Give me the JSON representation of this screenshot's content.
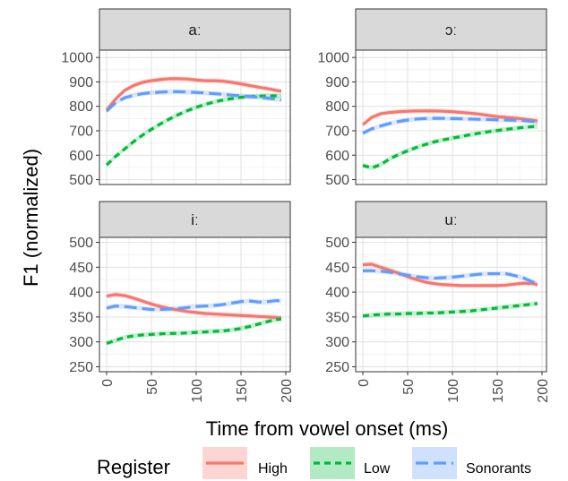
{
  "chart_data": {
    "type": "line",
    "xlabel": "Time from vowel onset (ms)",
    "ylabel": "F1 (normalized)",
    "legend": {
      "title": "Register",
      "position": "bottom",
      "entries": [
        {
          "name": "High",
          "color": "#F8766D",
          "dash": "solid"
        },
        {
          "name": "Low",
          "color": "#00BA38",
          "dash": "dashed"
        },
        {
          "name": "Sonorants",
          "color": "#619CFF",
          "dash": "longdash"
        }
      ]
    },
    "grid": true,
    "x_ticks": [
      0,
      50,
      100,
      150,
      200
    ],
    "xlim": [
      -8,
      205
    ],
    "panels": [
      {
        "title": "aː",
        "ylim": [
          480,
          1030
        ],
        "y_ticks": [
          500,
          600,
          700,
          800,
          900,
          1000
        ],
        "series": [
          {
            "name": "High",
            "x": [
              0,
              10,
              20,
              30,
              40,
              50,
              60,
              70,
              80,
              90,
              100,
              110,
              120,
              130,
              140,
              150,
              160,
              170,
              180,
              190,
              195
            ],
            "y": [
              785,
              830,
              865,
              885,
              898,
              905,
              910,
              913,
              913,
              912,
              908,
              905,
              905,
              903,
              898,
              892,
              885,
              878,
              872,
              865,
              862
            ]
          },
          {
            "name": "Low",
            "x": [
              0,
              10,
              20,
              30,
              40,
              50,
              60,
              70,
              80,
              90,
              100,
              110,
              120,
              130,
              140,
              150,
              160,
              170,
              180,
              190,
              195
            ],
            "y": [
              560,
              595,
              625,
              655,
              682,
              706,
              728,
              748,
              766,
              782,
              796,
              808,
              818,
              826,
              832,
              837,
              840,
              842,
              843,
              843,
              843
            ]
          },
          {
            "name": "Sonorants",
            "x": [
              0,
              10,
              20,
              30,
              40,
              50,
              60,
              70,
              80,
              90,
              100,
              110,
              120,
              130,
              140,
              150,
              160,
              170,
              180,
              190,
              195
            ],
            "y": [
              780,
              815,
              835,
              845,
              852,
              856,
              858,
              860,
              860,
              859,
              857,
              855,
              852,
              849,
              846,
              843,
              840,
              837,
              833,
              829,
              826
            ]
          }
        ]
      },
      {
        "title": "ɔː",
        "ylim": [
          480,
          1030
        ],
        "y_ticks": [
          500,
          600,
          700,
          800,
          900,
          1000
        ],
        "series": [
          {
            "name": "High",
            "x": [
              0,
              10,
              20,
              30,
              40,
              50,
              60,
              70,
              80,
              90,
              100,
              110,
              120,
              130,
              140,
              150,
              160,
              170,
              180,
              190,
              195
            ],
            "y": [
              725,
              755,
              770,
              775,
              778,
              780,
              781,
              781,
              781,
              780,
              778,
              775,
              772,
              768,
              763,
              758,
              755,
              752,
              748,
              743,
              740
            ]
          },
          {
            "name": "Low",
            "x": [
              0,
              10,
              20,
              30,
              40,
              50,
              60,
              70,
              80,
              90,
              100,
              110,
              120,
              130,
              140,
              150,
              160,
              170,
              180,
              190,
              195
            ],
            "y": [
              558,
              548,
              562,
              585,
              603,
              618,
              632,
              644,
              655,
              663,
              670,
              677,
              684,
              690,
              696,
              701,
              706,
              710,
              714,
              717,
              718
            ]
          },
          {
            "name": "Sonorants",
            "x": [
              0,
              10,
              20,
              30,
              40,
              50,
              60,
              70,
              80,
              90,
              100,
              110,
              120,
              130,
              140,
              150,
              160,
              170,
              180,
              190,
              195
            ],
            "y": [
              690,
              708,
              720,
              730,
              738,
              744,
              748,
              750,
              751,
              751,
              750,
              749,
              748,
              747,
              746,
              745,
              744,
              743,
              741,
              738,
              735
            ]
          }
        ]
      },
      {
        "title": "iː",
        "ylim": [
          240,
          510
        ],
        "y_ticks": [
          250,
          300,
          350,
          400,
          450,
          500
        ],
        "series": [
          {
            "name": "High",
            "x": [
              0,
              10,
              20,
              30,
              40,
              50,
              60,
              70,
              80,
              90,
              100,
              110,
              120,
              130,
              140,
              150,
              160,
              170,
              180,
              190,
              195
            ],
            "y": [
              392,
              395,
              393,
              388,
              382,
              376,
              371,
              367,
              364,
              361,
              359,
              357,
              356,
              355,
              354,
              353,
              352,
              351,
              350,
              349,
              348
            ]
          },
          {
            "name": "Low",
            "x": [
              0,
              10,
              20,
              30,
              40,
              50,
              60,
              70,
              80,
              90,
              100,
              110,
              120,
              130,
              140,
              150,
              160,
              170,
              180,
              190,
              195
            ],
            "y": [
              297,
              303,
              309,
              312,
              314,
              315,
              316,
              317,
              317,
              318,
              319,
              320,
              321,
              322,
              324,
              327,
              331,
              336,
              341,
              345,
              346
            ]
          },
          {
            "name": "Sonorants",
            "x": [
              0,
              10,
              20,
              30,
              40,
              50,
              60,
              70,
              80,
              90,
              100,
              110,
              120,
              130,
              140,
              150,
              160,
              170,
              180,
              190,
              195
            ],
            "y": [
              368,
              372,
              371,
              369,
              367,
              365,
              365,
              366,
              367,
              369,
              371,
              372,
              373,
              375,
              378,
              381,
              382,
              380,
              381,
              383,
              382
            ]
          }
        ]
      },
      {
        "title": "uː",
        "ylim": [
          240,
          510
        ],
        "y_ticks": [
          250,
          300,
          350,
          400,
          450,
          500
        ],
        "series": [
          {
            "name": "High",
            "x": [
              0,
              10,
              20,
              30,
              40,
              50,
              60,
              70,
              80,
              90,
              100,
              110,
              120,
              130,
              140,
              150,
              160,
              170,
              180,
              190,
              195
            ],
            "y": [
              455,
              456,
              450,
              444,
              438,
              431,
              425,
              420,
              417,
              415,
              414,
              413,
              413,
              413,
              413,
              413,
              414,
              416,
              418,
              417,
              415
            ]
          },
          {
            "name": "Low",
            "x": [
              0,
              10,
              20,
              30,
              40,
              50,
              60,
              70,
              80,
              90,
              100,
              110,
              120,
              130,
              140,
              150,
              160,
              170,
              180,
              190,
              195
            ],
            "y": [
              352,
              354,
              355,
              356,
              356,
              357,
              357,
              358,
              358,
              359,
              360,
              361,
              362,
              364,
              366,
              368,
              370,
              372,
              374,
              376,
              377
            ]
          },
          {
            "name": "Sonorants",
            "x": [
              0,
              10,
              20,
              30,
              40,
              50,
              60,
              70,
              80,
              90,
              100,
              110,
              120,
              130,
              140,
              150,
              160,
              170,
              180,
              190,
              195
            ],
            "y": [
              443,
              443,
              442,
              440,
              437,
              434,
              431,
              429,
              428,
              429,
              430,
              432,
              434,
              436,
              437,
              437,
              437,
              433,
              428,
              420,
              416
            ]
          }
        ]
      }
    ]
  }
}
